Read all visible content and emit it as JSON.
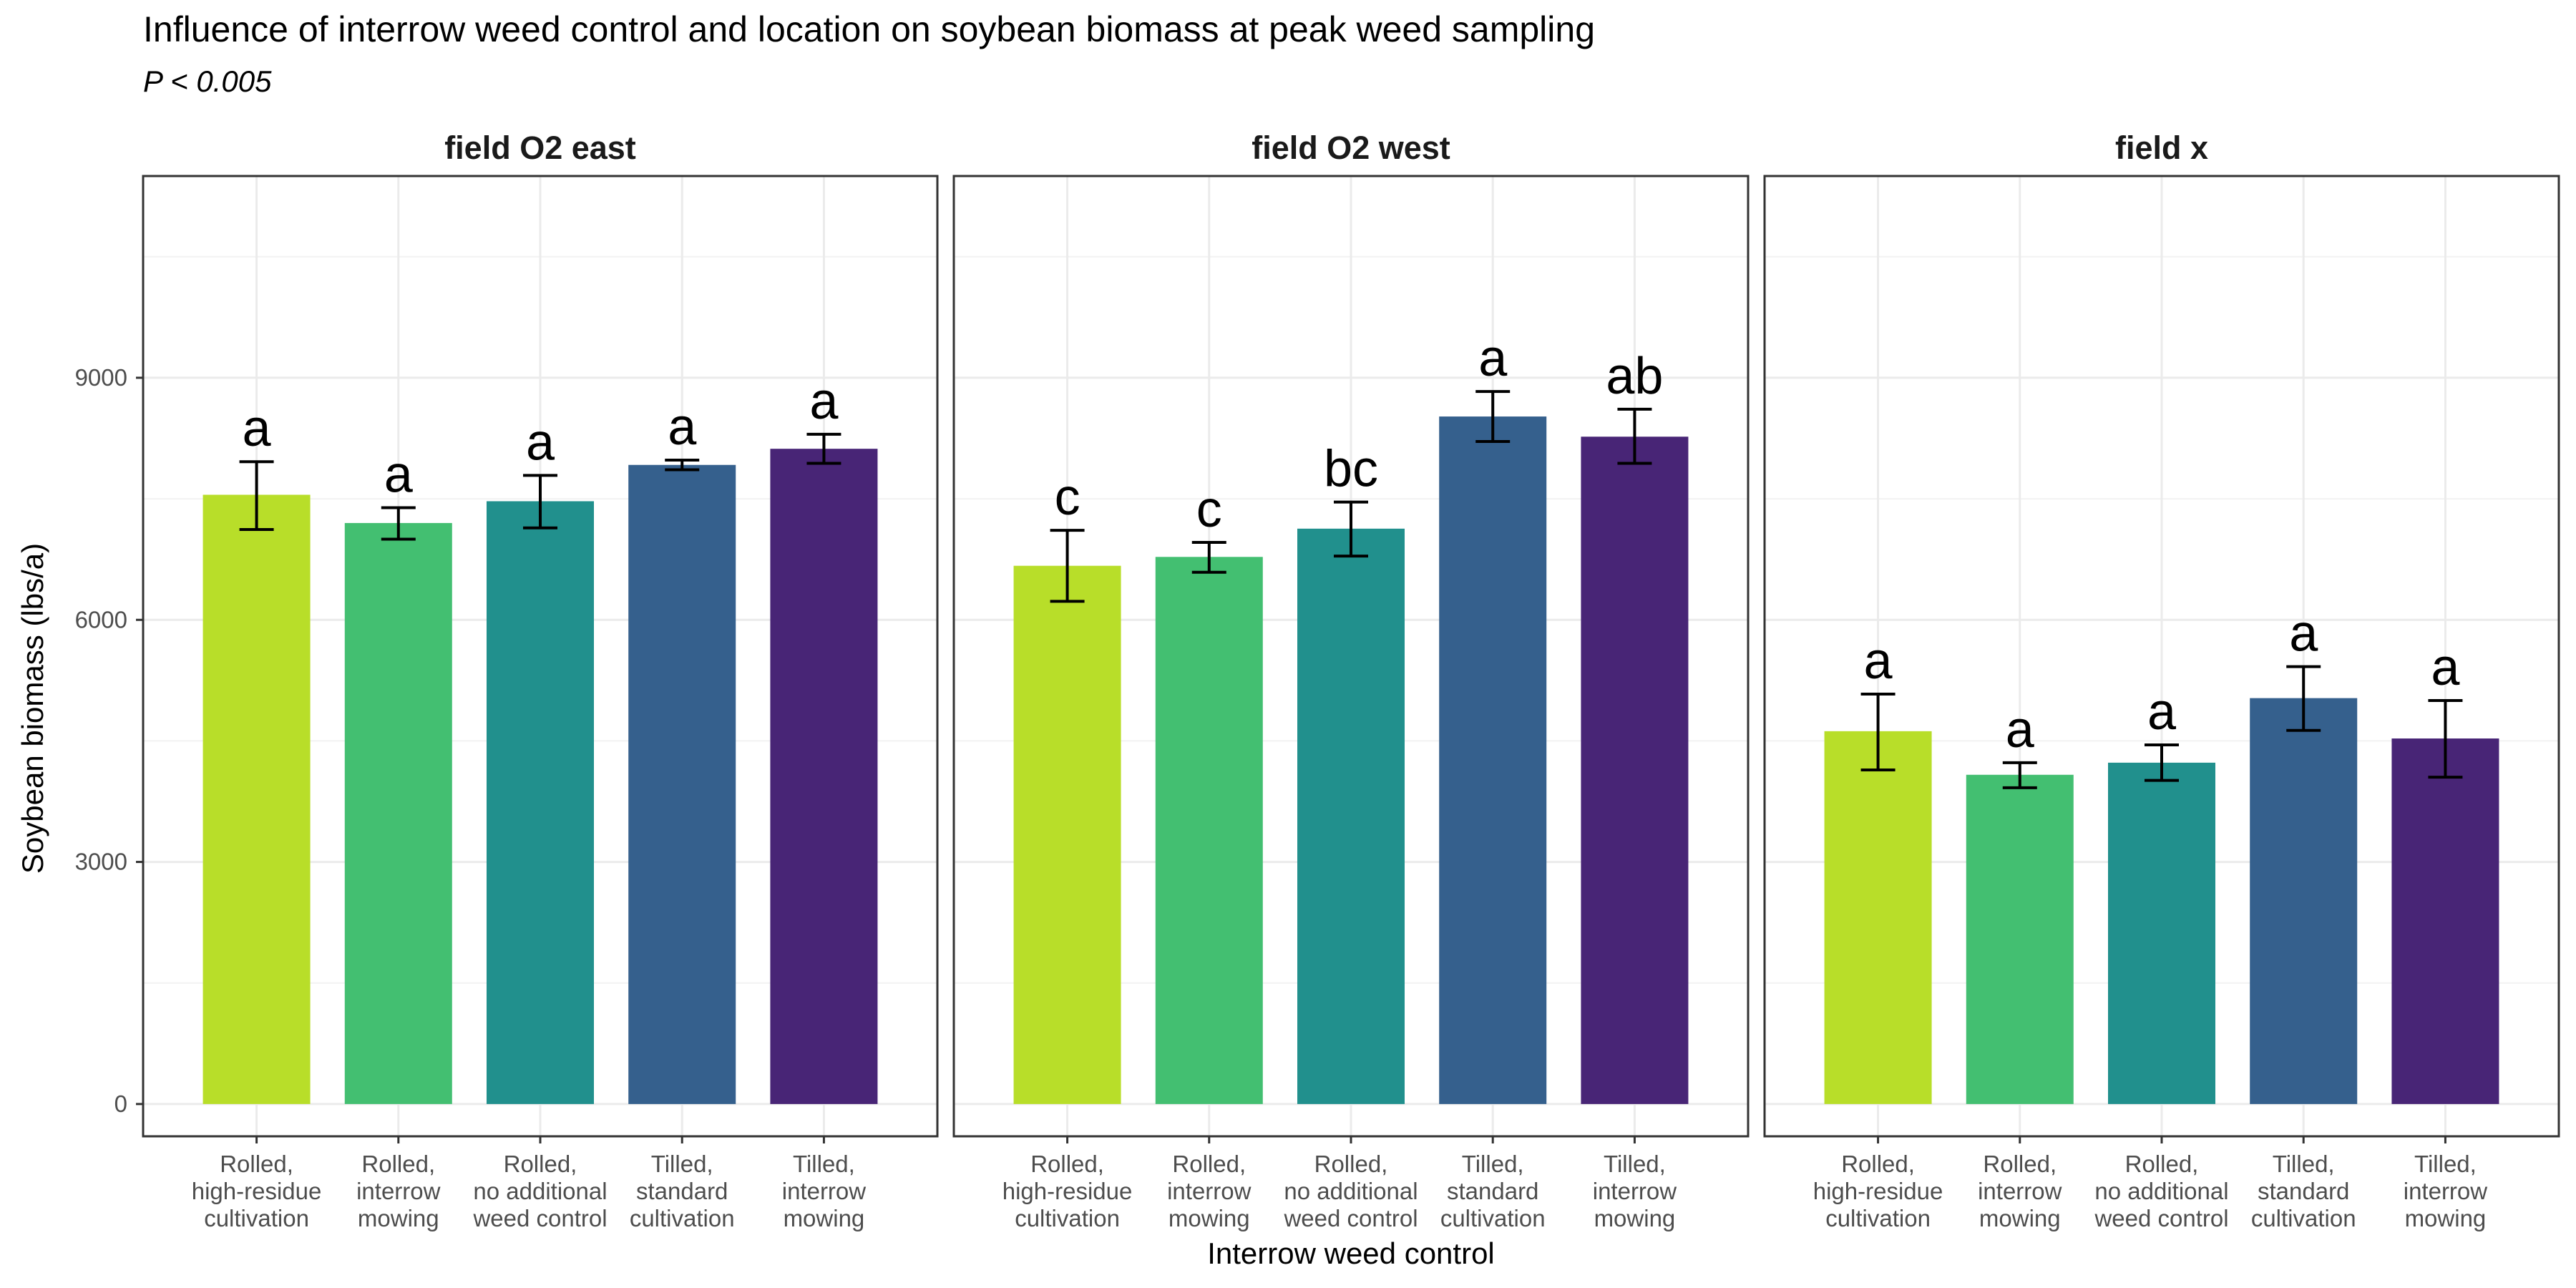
{
  "chart_data": {
    "type": "bar",
    "title": "Influence of interrow weed control and location on soybean biomass at peak weed sampling",
    "subtitle": "P < 0.005",
    "xlabel": "Interrow weed control",
    "ylabel": "Soybean biomass (lbs/a)",
    "ylim": [
      -400,
      11500
    ],
    "yticks": [
      0,
      3000,
      6000,
      9000
    ],
    "grid": true,
    "legend": "none",
    "categories": [
      [
        "Rolled,",
        "high-residue",
        "cultivation"
      ],
      [
        "Rolled,",
        "interrow",
        "mowing"
      ],
      [
        "Rolled,",
        "no additional",
        "weed control"
      ],
      [
        "Tilled,",
        "standard",
        "cultivation"
      ],
      [
        "Tilled,",
        "interrow",
        "mowing"
      ]
    ],
    "colors": [
      "#b8de29",
      "#43bf71",
      "#21908d",
      "#35608d",
      "#482576"
    ],
    "panels": [
      {
        "name": "field O2 east",
        "values": [
          7550,
          7200,
          7470,
          7920,
          8120
        ],
        "err_low": [
          7120,
          7000,
          7140,
          7860,
          7940
        ],
        "err_high": [
          7960,
          7390,
          7790,
          7980,
          8300
        ],
        "letters": [
          "a",
          "a",
          "a",
          "a",
          "a"
        ]
      },
      {
        "name": "field O2 west",
        "values": [
          6670,
          6780,
          7130,
          8520,
          8270
        ],
        "err_low": [
          6230,
          6590,
          6790,
          8210,
          7940
        ],
        "err_high": [
          7110,
          6960,
          7460,
          8830,
          8610
        ],
        "letters": [
          "c",
          "c",
          "bc",
          "a",
          "ab"
        ]
      },
      {
        "name": "field x",
        "values": [
          4620,
          4080,
          4230,
          5030,
          4530
        ],
        "err_low": [
          4140,
          3920,
          4010,
          4630,
          4050
        ],
        "err_high": [
          5080,
          4230,
          4450,
          5420,
          5000
        ],
        "letters": [
          "a",
          "a",
          "a",
          "a",
          "a"
        ]
      }
    ]
  }
}
